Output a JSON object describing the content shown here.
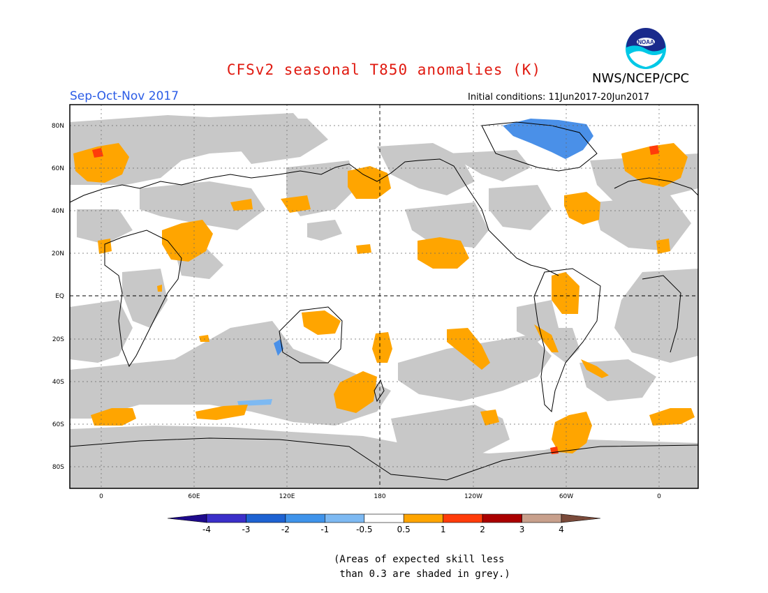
{
  "title": "CFSv2 seasonal T850 anomalies (K)",
  "agency": "NWS/NCEP/CPC",
  "logo_text": "NOAA",
  "season": "Sep-Oct-Nov 2017",
  "initial_conditions": "Initial conditions: 11Jun2017-20Jun2017",
  "lat_labels": [
    "80N",
    "60N",
    "40N",
    "20N",
    "EQ",
    "20S",
    "40S",
    "60S",
    "80S"
  ],
  "lon_labels": [
    "0",
    "60E",
    "120E",
    "180",
    "120W",
    "60W",
    "0"
  ],
  "colorbar": {
    "labels": [
      "-4",
      "-3",
      "-2",
      "-1",
      "-0.5",
      "0.5",
      "1",
      "2",
      "3",
      "4"
    ],
    "colors": [
      "#1e0a8c",
      "#3b2fc9",
      "#1e62d2",
      "#3f93ea",
      "#7db9f2",
      "#ffffff",
      "#ffa500",
      "#ff3c0a",
      "#aa0000",
      "#c8a08c",
      "#7a4a3a"
    ]
  },
  "skill_note": "(Areas of expected skill less\n than 0.3 are shaded in grey.)",
  "colors": {
    "title": "#e0190f",
    "season": "#2b5ce6",
    "grey_skill": "#c8c8c8",
    "anomaly_warm": "#ffa500",
    "anomaly_cool": "#4a90e8"
  }
}
